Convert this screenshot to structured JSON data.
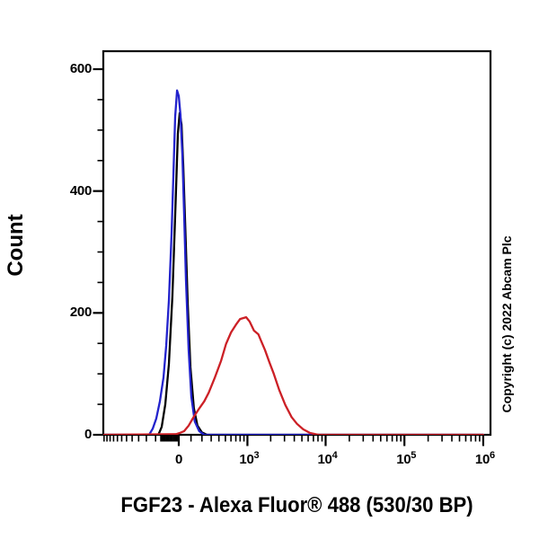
{
  "figure": {
    "x_axis_title": "FGF23 - Alexa Fluor® 488 (530/30 BP)",
    "y_axis_title": "Count",
    "copyright": "Copyright (c) 2022 Abcam Plc"
  },
  "chart_data": {
    "type": "line",
    "subtype": "flow-cytometry-histogram-overlay",
    "title": "",
    "xlabel": "FGF23 - Alexa Fluor® 488 (530/30 BP)",
    "ylabel": "Count",
    "x_scale": "biexponential",
    "x_range": [
      -1230,
      1000000
    ],
    "ylim": [
      0,
      630
    ],
    "grid": false,
    "legend": "none",
    "y_major_ticks": [
      {
        "value": 0,
        "label": "0"
      },
      {
        "value": 200,
        "label": "200"
      },
      {
        "value": 400,
        "label": "400"
      },
      {
        "value": 600,
        "label": "600"
      }
    ],
    "y_minor_tick_values": [
      50,
      100,
      150,
      250,
      300,
      350,
      450,
      500,
      550
    ],
    "x_major_ticks": [
      {
        "value": 0,
        "label": "0"
      },
      {
        "value": 1000,
        "base": "10",
        "exp": "3"
      },
      {
        "value": 10000,
        "base": "10",
        "exp": "4"
      },
      {
        "value": 100000,
        "base": "10",
        "exp": "5"
      },
      {
        "value": 1000000,
        "base": "10",
        "exp": "6"
      }
    ],
    "x_minor_tick_values": [
      -1200,
      -1100,
      -1000,
      -900,
      -800,
      -700,
      -600,
      -500,
      -400,
      -300,
      -200,
      -150,
      -140,
      -130,
      -120,
      -110,
      -100,
      -90,
      -80,
      -70,
      -60,
      -50,
      -40,
      -30,
      -20,
      -10,
      100,
      200,
      300,
      400,
      500,
      600,
      700,
      800,
      900,
      2000,
      3000,
      4000,
      5000,
      6000,
      7000,
      8000,
      9000,
      20000,
      30000,
      40000,
      50000,
      60000,
      70000,
      80000,
      90000,
      200000,
      300000,
      400000,
      500000,
      600000,
      700000,
      800000,
      900000
    ],
    "series": [
      {
        "name": "black-control-histogram",
        "color": "#000000",
        "peak": {
          "x": 7,
          "count": 528
        },
        "points": [
          [
            -1230,
            0
          ],
          [
            -173,
            0
          ],
          [
            -142,
            13
          ],
          [
            -111,
            50
          ],
          [
            -80,
            116
          ],
          [
            -51,
            227
          ],
          [
            -29,
            360
          ],
          [
            -7,
            494
          ],
          [
            7,
            528
          ],
          [
            22,
            509
          ],
          [
            36,
            442
          ],
          [
            51,
            348
          ],
          [
            73,
            215
          ],
          [
            95,
            111
          ],
          [
            125,
            44
          ],
          [
            157,
            15
          ],
          [
            199,
            4
          ],
          [
            253,
            0
          ],
          [
            1000000,
            0
          ]
        ]
      },
      {
        "name": "blue-control-histogram",
        "color": "#2222CC",
        "peak": {
          "x": -14,
          "count": 565
        },
        "points": [
          [
            -1230,
            0
          ],
          [
            -268,
            0
          ],
          [
            -229,
            10
          ],
          [
            -193,
            27
          ],
          [
            -159,
            55
          ],
          [
            -126,
            94
          ],
          [
            -103,
            146
          ],
          [
            -80,
            220
          ],
          [
            -58,
            330
          ],
          [
            -43,
            426
          ],
          [
            -29,
            522
          ],
          [
            -14,
            565
          ],
          [
            0,
            556
          ],
          [
            14,
            525
          ],
          [
            29,
            460
          ],
          [
            43,
            360
          ],
          [
            58,
            254
          ],
          [
            80,
            139
          ],
          [
            103,
            62
          ],
          [
            133,
            22
          ],
          [
            173,
            6
          ],
          [
            224,
            0
          ],
          [
            1000000,
            0
          ]
        ]
      },
      {
        "name": "red-stained-histogram",
        "color": "#CC2026",
        "peak": {
          "x": 963,
          "count": 193
        },
        "points": [
          [
            -1230,
            0
          ],
          [
            -22,
            1
          ],
          [
            7,
            3
          ],
          [
            43,
            6
          ],
          [
            80,
            15
          ],
          [
            119,
            28
          ],
          [
            173,
            43
          ],
          [
            224,
            55
          ],
          [
            271,
            69
          ],
          [
            346,
            94
          ],
          [
            430,
            121
          ],
          [
            510,
            149
          ],
          [
            601,
            168
          ],
          [
            705,
            181
          ],
          [
            800,
            190
          ],
          [
            963,
            193
          ],
          [
            1066,
            186
          ],
          [
            1218,
            171
          ],
          [
            1390,
            165
          ],
          [
            1485,
            156
          ],
          [
            1691,
            139
          ],
          [
            1925,
            119
          ],
          [
            2192,
            100
          ],
          [
            2564,
            74
          ],
          [
            3077,
            49
          ],
          [
            3693,
            29
          ],
          [
            4332,
            18
          ],
          [
            5189,
            9
          ],
          [
            6354,
            3
          ],
          [
            8121,
            0
          ],
          [
            1000000,
            0
          ]
        ]
      }
    ]
  }
}
